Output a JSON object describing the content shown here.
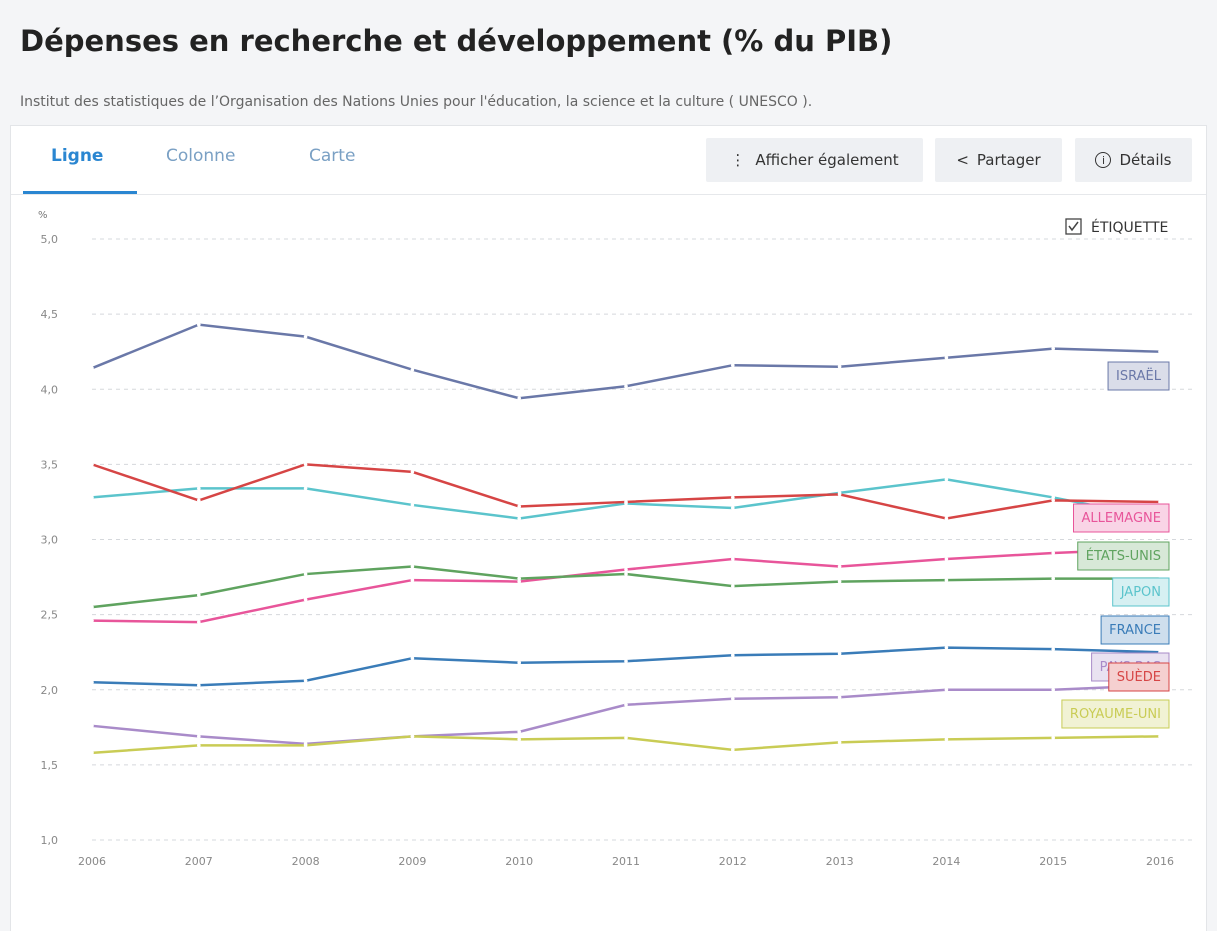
{
  "header": {
    "title": "Dépenses en recherche et développement (% du PIB)",
    "subtitle": "Institut des statistiques de l’Organisation des Nations Unies pour l'éducation, la science et la culture ( UNESCO )."
  },
  "tabs": [
    "Ligne",
    "Colonne",
    "Carte"
  ],
  "buttons": [
    "Afficher également",
    "Partager",
    "Détails"
  ],
  "label_toggle": "ÉTIQUETTE",
  "chart_data": {
    "type": "line",
    "y_label": "%",
    "categories": [
      "2006",
      "2007",
      "2008",
      "2009",
      "2010",
      "2011",
      "2012",
      "2013",
      "2014",
      "2015",
      "2016"
    ],
    "ylim": [
      1,
      5
    ],
    "yticks": [
      {
        "value": 1,
        "label": "1,0"
      },
      {
        "value": 1.5,
        "label": "1,5"
      },
      {
        "value": 2,
        "label": "2,0"
      },
      {
        "value": 2.5,
        "label": "2,5"
      },
      {
        "value": 3,
        "label": "3,0"
      },
      {
        "value": 3.5,
        "label": "3,5"
      },
      {
        "value": 4,
        "label": "4,0"
      },
      {
        "value": 4.5,
        "label": "4,5"
      },
      {
        "value": 5,
        "label": "5,0"
      }
    ],
    "grid": true,
    "series": [
      {
        "name": "ISRAËL",
        "color": "#6a78a8",
        "values": [
          4.14,
          4.43,
          4.35,
          4.13,
          3.94,
          4.02,
          4.16,
          4.15,
          4.21,
          4.27,
          4.25
        ]
      },
      {
        "name": "ALLEMAGNE",
        "color": "#e8559a",
        "values": [
          2.46,
          2.45,
          2.6,
          2.73,
          2.72,
          2.8,
          2.87,
          2.82,
          2.87,
          2.91,
          2.94
        ]
      },
      {
        "name": "ÉTATS-UNIS",
        "color": "#5fa35f",
        "values": [
          2.55,
          2.63,
          2.77,
          2.82,
          2.74,
          2.77,
          2.69,
          2.72,
          2.73,
          2.74,
          2.74
        ]
      },
      {
        "name": "JAPON",
        "color": "#5bc4cc",
        "values": [
          3.28,
          3.34,
          3.34,
          3.23,
          3.14,
          3.24,
          3.21,
          3.31,
          3.4,
          3.28,
          3.14
        ]
      },
      {
        "name": "FRANCE",
        "color": "#3a7cb8",
        "values": [
          2.05,
          2.03,
          2.06,
          2.21,
          2.18,
          2.19,
          2.23,
          2.24,
          2.28,
          2.27,
          2.25
        ]
      },
      {
        "name": "PAYS-BAS",
        "color": "#a98bc9",
        "values": [
          1.76,
          1.69,
          1.64,
          1.69,
          1.72,
          1.9,
          1.94,
          1.95,
          2.0,
          2.0,
          2.03
        ]
      },
      {
        "name": "SUÈDE",
        "color": "#d64545",
        "values": [
          3.5,
          3.26,
          3.5,
          3.45,
          3.22,
          3.25,
          3.28,
          3.3,
          3.14,
          3.26,
          3.25
        ]
      },
      {
        "name": "ROYAUME-UNI",
        "color": "#c9cc55",
        "values": [
          1.58,
          1.63,
          1.63,
          1.69,
          1.67,
          1.68,
          1.6,
          1.65,
          1.67,
          1.68,
          1.69
        ]
      }
    ]
  }
}
